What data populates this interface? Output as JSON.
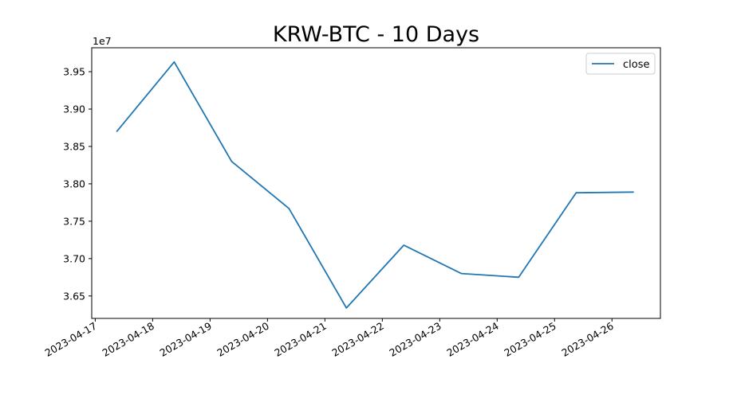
{
  "chart_data": {
    "type": "line",
    "title": "KRW-BTC - 10 Days",
    "xlabel": "",
    "ylabel": "",
    "y_offset_label": "1e7",
    "grid": false,
    "legend_placement": "top-right",
    "x_ticks": [
      "2023-04-17",
      "2023-04-18",
      "2023-04-19",
      "2023-04-20",
      "2023-04-21",
      "2023-04-22",
      "2023-04-23",
      "2023-04-24",
      "2023-04-25",
      "2023-04-26"
    ],
    "y_ticks": [
      "3.65",
      "3.70",
      "3.75",
      "3.80",
      "3.85",
      "3.90",
      "3.95"
    ],
    "xlim": [
      "2023-04-16T22:32",
      "2023-04-26T20:15"
    ],
    "ylim": [
      36.2,
      39.82
    ],
    "series": [
      {
        "name": "close",
        "color": "#1f77b4",
        "x": [
          "2023-04-17T09:00",
          "2023-04-18T09:00",
          "2023-04-19T09:00",
          "2023-04-20T09:00",
          "2023-04-21T09:00",
          "2023-04-22T09:00",
          "2023-04-23T09:00",
          "2023-04-24T09:00",
          "2023-04-25T09:00",
          "2023-04-26T09:00"
        ],
        "values": [
          38.7,
          39.63,
          38.3,
          37.67,
          36.34,
          37.18,
          36.8,
          36.75,
          37.88,
          37.89
        ]
      }
    ]
  }
}
